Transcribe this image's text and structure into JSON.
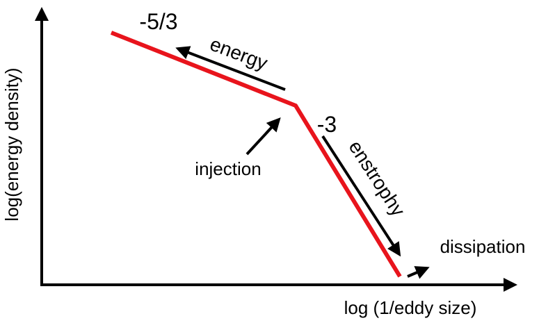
{
  "axes": {
    "y_label": "log(energy density)",
    "x_label": "log (1/eddy size)"
  },
  "slopes": {
    "low": "-5/3",
    "high": "-3"
  },
  "arrows": {
    "energy": "energy",
    "enstrophy": "enstrophy",
    "injection": "injection",
    "dissipation": "dissipation"
  }
}
